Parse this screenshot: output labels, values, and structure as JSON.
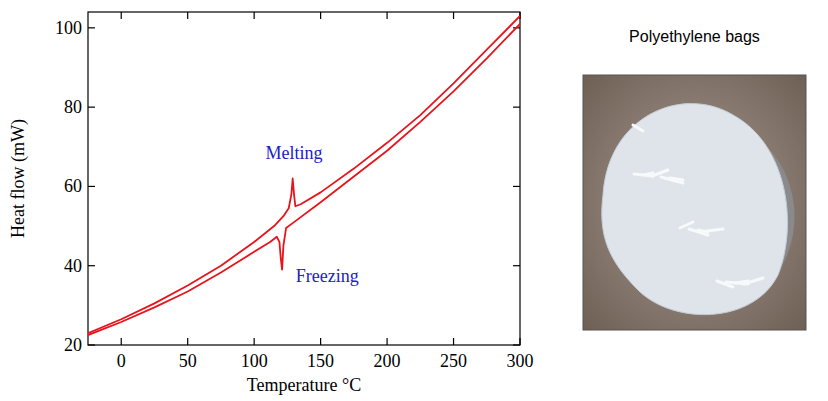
{
  "chart_data": {
    "type": "line",
    "x_label": "Temperature °C",
    "y_label": "Heat flow (mW)",
    "xlim": [
      -25,
      300
    ],
    "ylim": [
      20,
      104
    ],
    "xticks": [
      0,
      50,
      100,
      150,
      200,
      250,
      300
    ],
    "yticks": [
      20,
      40,
      60,
      80,
      100
    ],
    "series": [
      {
        "color": "#e8141b",
        "x": [
          -25,
          0,
          25,
          50,
          75,
          100,
          115,
          122,
          126,
          128,
          129,
          130,
          131,
          135,
          150,
          175,
          200,
          225,
          250,
          275,
          300
        ],
        "values": [
          23,
          26.5,
          30.5,
          35,
          40,
          46,
          50,
          52.5,
          54.5,
          58,
          62,
          58,
          55,
          55.5,
          58.5,
          64.5,
          71,
          78,
          86,
          94.5,
          103
        ]
      },
      {
        "color": "#e8141b",
        "x": [
          -25,
          0,
          25,
          50,
          75,
          100,
          112,
          117,
          119,
          120,
          121,
          122,
          124,
          130,
          150,
          175,
          200,
          225,
          250,
          275,
          300
        ],
        "values": [
          22.5,
          25.8,
          29.5,
          33.5,
          38.3,
          43.5,
          46,
          47.3,
          46,
          42,
          39,
          45,
          49.5,
          51,
          56,
          62.5,
          69,
          76.3,
          84,
          92.3,
          101
        ]
      }
    ],
    "annotations": [
      {
        "text": "Melting",
        "x": 130,
        "y": 67
      },
      {
        "text": "Freezing",
        "x": 155,
        "y": 36
      }
    ],
    "image_title": "Polyethylene bags"
  }
}
